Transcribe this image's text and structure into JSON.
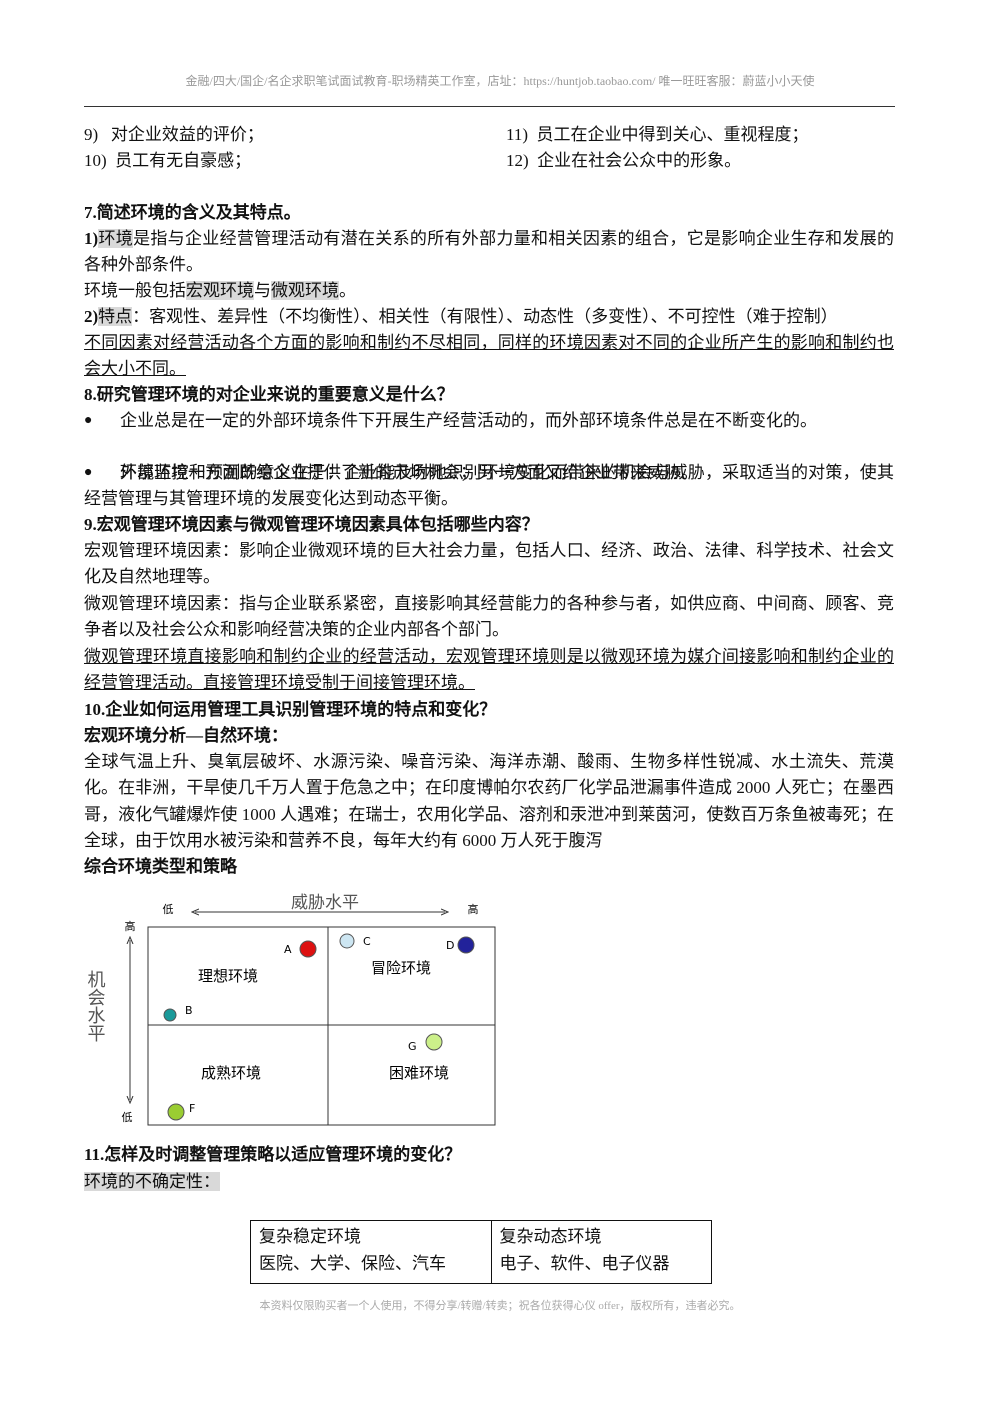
{
  "header": {
    "text": "金融/四大/国企/名企求职笔试面试教育-职场精英工作室，店址：https://huntjob.taobao.com/ 唯一旺旺客服：蔚蓝小小天使"
  },
  "list": [
    {
      "num": "9)",
      "text": "对企业效益的评价；"
    },
    {
      "num": "10)",
      "text": "员工有无自豪感；"
    },
    {
      "num": "11)",
      "text": "员工在企业中得到关心、重视程度；"
    },
    {
      "num": "12)",
      "text": "企业在社会公众中的形象。"
    }
  ],
  "s7": {
    "title": "7.简述环境的含义及其特点。",
    "p1": [
      "1)",
      "环境",
      "是指与企业经营管理活动有潜在关系的所有外部力量和相关因素的组合，它是影响企业生存和发展的各种外部条件。"
    ],
    "p2": [
      "环境一般包括",
      "宏观环境",
      "与",
      "微观环境",
      "。"
    ],
    "p3": [
      "2)",
      "特点",
      "：客观性、差异性（不均衡性）、相关性（有限性）、动态性（多变性）、不可控性（难于控制）"
    ],
    "p4": "不同因素对经营活动各个方面的影响和制约不尽相同，同样的环境因素对不同的企业所产生的影响和制约也会大小不同。"
  },
  "s8": {
    "title": "8.研究管理环境的对企业来说的重要意义是什么？",
    "bullets": [
      "企业总是在一定的外部环境条件下开展生产经营活动的，而外部环境条件总是在不断变化的。",
      "外部环境一方面既给企业提供了新的市场机会；另一方面又给企业带来威胁。",
      "环境监控和预测的意义在于：企业能及时地识别环境变化而带来的机会与威胁，采取适当的对策，使其经营管理与其管理环境的发展变化达到动态平衡。"
    ]
  },
  "s9": {
    "title": "9.宏观管理环境因素与微观管理环境因素具体包括哪些内容？",
    "p1": "宏观管理环境因素：影响企业微观环境的巨大社会力量，包括人口、经济、政治、法律、科学技术、社会文化及自然地理等。",
    "p2": "微观管理环境因素：指与企业联系紧密，直接影响其经营能力的各种参与者，如供应商、中间商、顾客、竞争者以及社会公众和影响经营决策的企业内部各个部门。",
    "p3": "微观管理环境直接影响和制约企业的经营活动，宏观管理环境则是以微观环境为媒介间接影响和制约企业的经营管理活动。直接管理环境受制于间接管理环境。"
  },
  "s10": {
    "title": "10.企业如何运用管理工具识别管理环境的特点和变化？",
    "sub1": "宏观环境分析—自然环境：",
    "p1": "全球气温上升、臭氧层破坏、水源污染、噪音污染、海洋赤潮、酸雨、生物多样性锐减、水土流失、荒漠化。在非洲，干旱使几千万人置于危急之中；在印度博帕尔农药厂化学品泄漏事件造成 2000 人死亡；在墨西哥，液化气罐爆炸使 1000 人遇难；在瑞士，农用化学品、溶剂和汞泄冲到莱茵河，使数百万条鱼被毒死；在全球，由于饮用水被污染和营养不良，每年大约有 6000 万人死于腹泻",
    "sub2": "综合环境类型和策略"
  },
  "diagram": {
    "x_axis": "威胁水平",
    "x_low": "低",
    "x_high": "高",
    "y_axis": "机会水平",
    "y_high": "高",
    "y_low": "低",
    "quadrants": [
      "理想环境",
      "冒险环境",
      "成熟环境",
      "困难环境"
    ],
    "points": [
      "A",
      "B",
      "C",
      "D",
      "F",
      "G"
    ]
  },
  "s11": {
    "title": "11.怎样及时调整管理策略以适应管理环境的变化？",
    "p1": "环境的不确定性："
  },
  "table": {
    "rows": [
      [
        "复杂稳定环境",
        "复杂动态环境"
      ],
      [
        "医院、大学、保险、汽车",
        "电子、软件、电子仪器"
      ]
    ]
  },
  "footer": {
    "text": "本资料仅限购买者一个人使用，不得分享/转赠/转卖；祝各位获得心仪 offer，版权所有，违者必究。"
  }
}
